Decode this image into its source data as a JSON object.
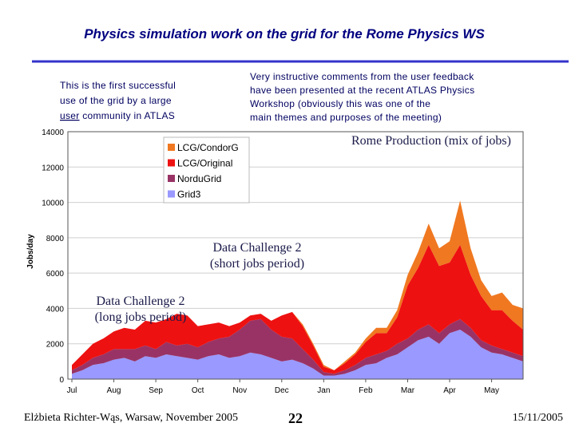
{
  "slide": {
    "title": "Physics simulation work on the grid for the Rome Physics WS",
    "left_note": {
      "lines": [
        "This is the first successful",
        "use of the grid by a large"
      ],
      "underlined": "user",
      "rest": "community in ATLAS"
    },
    "right_note": [
      "Very instructive comments from the user feedback",
      "have been presented at the recent ATLAS Physics",
      "Workshop (obviously this was one of the",
      "main themes and purposes of the meeting)"
    ],
    "footer": {
      "author": "Elżbieta Richter-Wąs, Warsaw, November 2005",
      "page": "22",
      "date": "15/11/2005"
    }
  },
  "chart_data": {
    "type": "stacked-area",
    "ylabel": "Jobs/day",
    "annotations": [
      [
        "Rome Production (mix of jobs)"
      ],
      [
        "Data Challenge 2",
        "(short jobs period)"
      ],
      [
        "Data Challenge 2",
        "(long jobs period)"
      ]
    ],
    "categories": [
      "Jul",
      null,
      null,
      null,
      "Aug",
      null,
      null,
      null,
      "Sep",
      null,
      null,
      null,
      "Oct",
      null,
      null,
      null,
      "Nov",
      null,
      null,
      null,
      "Dec",
      null,
      null,
      null,
      "Jan",
      null,
      null,
      null,
      "Feb",
      null,
      null,
      null,
      "Mar",
      null,
      null,
      null,
      "Apr",
      null,
      null,
      null,
      "May",
      null,
      null,
      null
    ],
    "series": [
      {
        "name": "LCG/CondorG",
        "color": "#f07820",
        "values": [
          0,
          0,
          0,
          0,
          0,
          0,
          0,
          0,
          0,
          0,
          0,
          0,
          0,
          0,
          0,
          0,
          0,
          0,
          0,
          0,
          0,
          0,
          100,
          100,
          100,
          0,
          100,
          100,
          200,
          300,
          300,
          400,
          600,
          900,
          1200,
          1000,
          1200,
          2500,
          1500,
          900,
          800,
          1000,
          900,
          1200
        ]
      },
      {
        "name": "LCG/Original",
        "color": "#ee1111",
        "values": [
          300,
          600,
          800,
          900,
          1000,
          1200,
          1100,
          1400,
          1500,
          1300,
          1800,
          1600,
          1200,
          1000,
          900,
          600,
          400,
          300,
          300,
          500,
          1200,
          1500,
          1300,
          800,
          300,
          200,
          400,
          600,
          900,
          1200,
          1000,
          1500,
          3000,
          3500,
          4500,
          3800,
          3500,
          4200,
          3000,
          2500,
          2000,
          2200,
          1800,
          1500
        ]
      },
      {
        "name": "NorduGrid",
        "color": "#993366",
        "values": [
          200,
          300,
          400,
          500,
          600,
          500,
          700,
          600,
          500,
          700,
          600,
          800,
          700,
          800,
          900,
          1200,
          1500,
          1800,
          2000,
          1600,
          1400,
          1200,
          800,
          500,
          200,
          100,
          200,
          300,
          400,
          500,
          400,
          600,
          500,
          600,
          700,
          600,
          500,
          600,
          500,
          400,
          400,
          300,
          300,
          300
        ]
      },
      {
        "name": "Grid3",
        "color": "#9999ff",
        "values": [
          300,
          500,
          800,
          900,
          1100,
          1200,
          1000,
          1300,
          1200,
          1400,
          1300,
          1200,
          1100,
          1300,
          1400,
          1200,
          1300,
          1500,
          1400,
          1200,
          1000,
          1100,
          900,
          600,
          200,
          200,
          300,
          500,
          800,
          900,
          1200,
          1400,
          1800,
          2200,
          2400,
          2000,
          2600,
          2800,
          2400,
          1800,
          1500,
          1400,
          1200,
          1000
        ]
      }
    ],
    "ylim": [
      0,
      14000
    ],
    "yticks": [
      0,
      2000,
      4000,
      6000,
      8000,
      10000,
      12000,
      14000
    ],
    "grid": true,
    "legend": "top-left"
  }
}
